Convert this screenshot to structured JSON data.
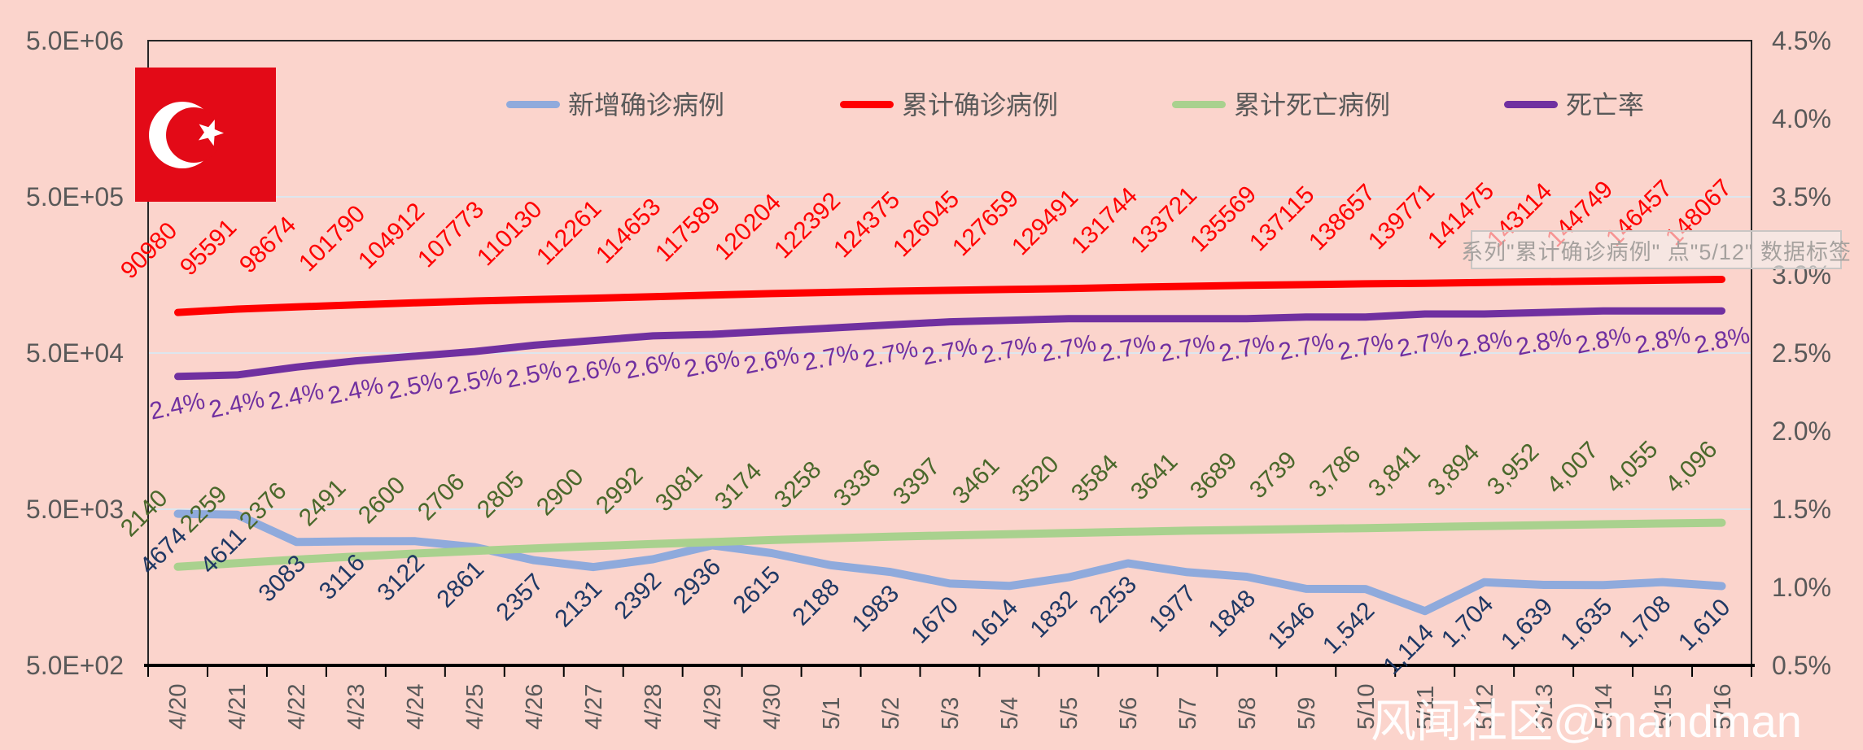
{
  "colors": {
    "background": "#FBD4CC",
    "plot_border": "#262626",
    "gridline": "#DDE6EE",
    "axis_text": "#595959",
    "flag_red": "#E30A17",
    "flag_white": "#FFFFFF"
  },
  "legend": [
    {
      "key": "new-cases",
      "label": "新增确诊病例",
      "color": "#8FAADC"
    },
    {
      "key": "cumulative-cases",
      "label": "累计确诊病例",
      "color": "#FF0000"
    },
    {
      "key": "cumulative-deaths",
      "label": "累计死亡病例",
      "color": "#A9D18E"
    },
    {
      "key": "death-rate",
      "label": "死亡率",
      "color": "#7030A0"
    }
  ],
  "tooltip": {
    "text": "系列\"累计确诊病例\" 点\"5/12\" 数据标签"
  },
  "watermark": "风闻社区@mandman",
  "axes": {
    "left_ticks": [
      "5.0E+06",
      "5.0E+05",
      "5.0E+04",
      "5.0E+03",
      "5.0E+02"
    ],
    "right_ticks": [
      "4.5%",
      "4.0%",
      "3.5%",
      "3.0%",
      "2.5%",
      "2.0%",
      "1.5%",
      "1.0%",
      "0.5%"
    ]
  },
  "chart_data": {
    "type": "line",
    "title": "",
    "x_categories": [
      "4/20",
      "4/21",
      "4/22",
      "4/23",
      "4/24",
      "4/25",
      "4/26",
      "4/27",
      "4/28",
      "4/29",
      "4/30",
      "5/1",
      "5/2",
      "5/3",
      "5/4",
      "5/5",
      "5/6",
      "5/7",
      "5/8",
      "5/9",
      "5/10",
      "5/11",
      "5/12",
      "5/13",
      "5/14",
      "5/15",
      "5/16"
    ],
    "left_axis": {
      "scale": "log",
      "min": 500,
      "max": 5000000,
      "tick_labels": [
        "5.0E+06",
        "5.0E+05",
        "5.0E+04",
        "5.0E+03",
        "5.0E+02"
      ]
    },
    "right_axis": {
      "scale": "linear",
      "min": 0.5,
      "max": 4.5,
      "unit": "%"
    },
    "grid": "horizontal-decades",
    "legend_position": "top",
    "series": [
      {
        "key": "new-cases",
        "name": "新增确诊病例",
        "axis": "left",
        "color": "#8FAADC",
        "label_color": "#1F3864",
        "values": [
          4674,
          4611,
          3083,
          3116,
          3122,
          2861,
          2357,
          2131,
          2392,
          2936,
          2615,
          2188,
          1983,
          1670,
          1614,
          1832,
          2253,
          1977,
          1848,
          1546,
          1542,
          1114,
          1704,
          1639,
          1635,
          1708,
          1610
        ],
        "labels": [
          "4674",
          "4611",
          "3083",
          "3116",
          "3122",
          "2861",
          "2357",
          "2131",
          "2392",
          "2936",
          "2615",
          "2188",
          "1983",
          "1670",
          "1614",
          "1832",
          "2253",
          "1977",
          "1848",
          "1546",
          "1,542",
          "1,114",
          "1,704",
          "1,639",
          "1,635",
          "1,708",
          "1,610"
        ]
      },
      {
        "key": "cumulative-cases",
        "name": "累计确诊病例",
        "axis": "left",
        "color": "#FF0000",
        "label_color": "#FF0000",
        "values": [
          90980,
          95591,
          98674,
          101790,
          104912,
          107773,
          110130,
          112261,
          114653,
          117589,
          120204,
          122392,
          124375,
          126045,
          127659,
          129491,
          131744,
          133721,
          135569,
          137115,
          138657,
          139771,
          141475,
          143114,
          144749,
          146457,
          148067
        ],
        "labels": [
          "90980",
          "95591",
          "98674",
          "101790",
          "104912",
          "107773",
          "110130",
          "112261",
          "114653",
          "117589",
          "120204",
          "122392",
          "124375",
          "126045",
          "127659",
          "129491",
          "131744",
          "133721",
          "135569",
          "137115",
          "138657",
          "139771",
          "141475",
          "143114",
          "144749",
          "146457",
          "148067"
        ]
      },
      {
        "key": "cumulative-deaths",
        "name": "累计死亡病例",
        "axis": "left",
        "color": "#A9D18E",
        "label_color": "#4A682B",
        "values": [
          2140,
          2259,
          2376,
          2491,
          2600,
          2706,
          2805,
          2900,
          2992,
          3081,
          3174,
          3258,
          3336,
          3397,
          3461,
          3520,
          3584,
          3641,
          3689,
          3739,
          3786,
          3841,
          3894,
          3952,
          4007,
          4055,
          4096
        ],
        "labels": [
          "2140",
          "2259",
          "2376",
          "2491",
          "2600",
          "2706",
          "2805",
          "2900",
          "2992",
          "3081",
          "3174",
          "3258",
          "3336",
          "3397",
          "3461",
          "3520",
          "3584",
          "3641",
          "3689",
          "3739",
          "3,786",
          "3,841",
          "3,894",
          "3,952",
          "4,007",
          "4,055",
          "4,096"
        ]
      },
      {
        "key": "death-rate",
        "name": "死亡率",
        "axis": "right",
        "color": "#7030A0",
        "label_color": "#7030A0",
        "values": [
          2.35,
          2.36,
          2.41,
          2.45,
          2.48,
          2.51,
          2.55,
          2.58,
          2.61,
          2.62,
          2.64,
          2.66,
          2.68,
          2.7,
          2.71,
          2.72,
          2.72,
          2.72,
          2.72,
          2.73,
          2.73,
          2.75,
          2.75,
          2.76,
          2.77,
          2.77,
          2.77
        ],
        "labels": [
          "2.4%",
          "2.4%",
          "2.4%",
          "2.4%",
          "2.5%",
          "2.5%",
          "2.5%",
          "2.6%",
          "2.6%",
          "2.6%",
          "2.6%",
          "2.7%",
          "2.7%",
          "2.7%",
          "2.7%",
          "2.7%",
          "2.7%",
          "2.7%",
          "2.7%",
          "2.7%",
          "2.7%",
          "2.7%",
          "2.8%",
          "2.8%",
          "2.8%",
          "2.8%",
          "2.8%"
        ]
      }
    ]
  }
}
